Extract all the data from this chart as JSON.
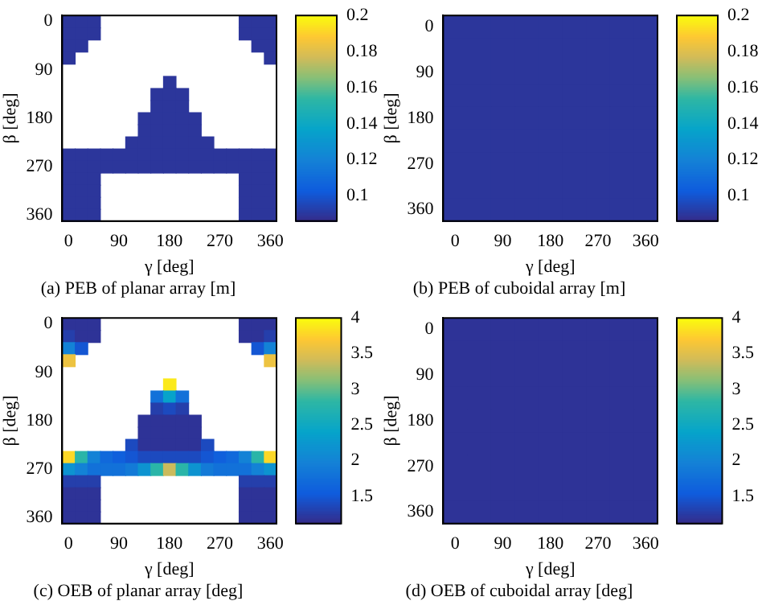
{
  "chart_data": [
    {
      "type": "heatmap",
      "title": "(a) PEB of planar array [m]",
      "xlabel": "γ [deg]",
      "ylabel": "β [deg]",
      "clim": [
        0.086,
        0.2
      ],
      "cticks": [
        0.1,
        0.12,
        0.14,
        0.16,
        0.18,
        0.2
      ],
      "categories": [
        "0",
        null,
        null,
        null,
        "90",
        null,
        null,
        null,
        "180",
        null,
        null,
        null,
        "270",
        null,
        null,
        null,
        "360"
      ],
      "y_categories": [
        "0",
        null,
        null,
        null,
        "90",
        null,
        null,
        null,
        "180",
        null,
        null,
        null,
        "270",
        null,
        null,
        null,
        "360"
      ],
      "cells": [
        [
          0.09,
          0.09,
          0.09,
          null,
          null,
          null,
          null,
          null,
          null,
          null,
          null,
          null,
          null,
          null,
          0.09,
          0.09,
          0.09
        ],
        [
          0.09,
          0.09,
          0.09,
          null,
          null,
          null,
          null,
          null,
          null,
          null,
          null,
          null,
          null,
          null,
          0.09,
          0.09,
          0.09
        ],
        [
          0.09,
          0.09,
          null,
          null,
          null,
          null,
          null,
          null,
          null,
          null,
          null,
          null,
          null,
          null,
          null,
          0.09,
          0.09
        ],
        [
          0.09,
          null,
          null,
          null,
          null,
          null,
          null,
          null,
          null,
          null,
          null,
          null,
          null,
          null,
          null,
          null,
          0.09
        ],
        [
          null,
          null,
          null,
          null,
          null,
          null,
          null,
          null,
          null,
          null,
          null,
          null,
          null,
          null,
          null,
          null,
          null
        ],
        [
          null,
          null,
          null,
          null,
          null,
          null,
          null,
          null,
          0.09,
          null,
          null,
          null,
          null,
          null,
          null,
          null,
          null
        ],
        [
          null,
          null,
          null,
          null,
          null,
          null,
          null,
          0.09,
          0.09,
          0.09,
          null,
          null,
          null,
          null,
          null,
          null,
          null
        ],
        [
          null,
          null,
          null,
          null,
          null,
          null,
          null,
          0.09,
          0.09,
          0.09,
          null,
          null,
          null,
          null,
          null,
          null,
          null
        ],
        [
          null,
          null,
          null,
          null,
          null,
          null,
          0.09,
          0.09,
          0.09,
          0.09,
          0.09,
          null,
          null,
          null,
          null,
          null,
          null
        ],
        [
          null,
          null,
          null,
          null,
          null,
          null,
          0.09,
          0.09,
          0.09,
          0.09,
          0.09,
          null,
          null,
          null,
          null,
          null,
          null
        ],
        [
          null,
          null,
          null,
          null,
          null,
          0.09,
          0.09,
          0.09,
          0.09,
          0.09,
          0.09,
          0.09,
          null,
          null,
          null,
          null,
          null
        ],
        [
          0.09,
          0.09,
          0.09,
          0.09,
          0.09,
          0.09,
          0.09,
          0.09,
          0.09,
          0.09,
          0.09,
          0.09,
          0.09,
          0.09,
          0.09,
          0.09,
          0.09
        ],
        [
          0.09,
          0.09,
          0.09,
          0.09,
          0.09,
          0.09,
          0.09,
          0.09,
          0.09,
          0.09,
          0.09,
          0.09,
          0.09,
          0.09,
          0.09,
          0.09,
          0.09
        ],
        [
          0.09,
          0.09,
          0.09,
          null,
          null,
          null,
          null,
          null,
          null,
          null,
          null,
          null,
          null,
          null,
          0.09,
          0.09,
          0.09
        ],
        [
          0.09,
          0.09,
          0.09,
          null,
          null,
          null,
          null,
          null,
          null,
          null,
          null,
          null,
          null,
          null,
          0.09,
          0.09,
          0.09
        ],
        [
          0.09,
          0.09,
          0.09,
          null,
          null,
          null,
          null,
          null,
          null,
          null,
          null,
          null,
          null,
          null,
          0.09,
          0.09,
          0.09
        ],
        [
          0.09,
          0.09,
          0.09,
          null,
          null,
          null,
          null,
          null,
          null,
          null,
          null,
          null,
          null,
          null,
          0.09,
          0.09,
          0.09
        ]
      ]
    },
    {
      "type": "heatmap",
      "title": "(b) PEB of cuboidal array [m]",
      "xlabel": "γ [deg]",
      "ylabel": "β [deg]",
      "clim": [
        0.086,
        0.2
      ],
      "cticks": [
        0.1,
        0.12,
        0.14,
        0.16,
        0.18,
        0.2
      ],
      "categories": [
        "0",
        null,
        "90",
        null,
        "180",
        null,
        "270",
        null,
        "360"
      ],
      "y_categories": [
        "0",
        null,
        "90",
        null,
        "180",
        null,
        "270",
        null,
        "360"
      ],
      "cells": [
        [
          0.09,
          0.09,
          0.09,
          0.09,
          0.09,
          0.09,
          0.09,
          0.09,
          0.09
        ],
        [
          0.09,
          0.09,
          0.09,
          0.09,
          0.09,
          0.09,
          0.09,
          0.09,
          0.09
        ],
        [
          0.09,
          0.09,
          0.09,
          0.09,
          0.09,
          0.09,
          0.09,
          0.09,
          0.09
        ],
        [
          0.09,
          0.09,
          0.09,
          0.09,
          0.09,
          0.09,
          0.09,
          0.09,
          0.09
        ],
        [
          0.09,
          0.09,
          0.09,
          0.09,
          0.09,
          0.09,
          0.09,
          0.09,
          0.09
        ],
        [
          0.09,
          0.09,
          0.09,
          0.09,
          0.09,
          0.09,
          0.09,
          0.09,
          0.09
        ],
        [
          0.09,
          0.09,
          0.09,
          0.09,
          0.09,
          0.09,
          0.09,
          0.09,
          0.09
        ],
        [
          0.09,
          0.09,
          0.09,
          0.09,
          0.09,
          0.09,
          0.09,
          0.09,
          0.09
        ],
        [
          0.09,
          0.09,
          0.09,
          0.09,
          0.09,
          0.09,
          0.09,
          0.09,
          0.09
        ]
      ]
    },
    {
      "type": "heatmap",
      "title": "(c) OEB of planar array [deg]",
      "xlabel": "γ [deg]",
      "ylabel": "β [deg]",
      "clim": [
        1.12,
        4
      ],
      "cticks": [
        1.5,
        2,
        2.5,
        3,
        3.5,
        4
      ],
      "categories": [
        "0",
        null,
        null,
        null,
        "90",
        null,
        null,
        null,
        "180",
        null,
        null,
        null,
        "270",
        null,
        null,
        null,
        "360"
      ],
      "y_categories": [
        "0",
        null,
        null,
        null,
        "90",
        null,
        null,
        null,
        "180",
        null,
        null,
        null,
        "270",
        null,
        null,
        null,
        "360"
      ],
      "cells": [
        [
          1.2,
          1.2,
          1.2,
          null,
          null,
          null,
          null,
          null,
          null,
          null,
          null,
          null,
          null,
          null,
          1.2,
          1.2,
          1.2
        ],
        [
          1.3,
          1.2,
          1.2,
          null,
          null,
          null,
          null,
          null,
          null,
          null,
          null,
          null,
          null,
          null,
          1.2,
          1.2,
          1.3
        ],
        [
          2,
          1.5,
          null,
          null,
          null,
          null,
          null,
          null,
          null,
          null,
          null,
          null,
          null,
          null,
          null,
          1.5,
          2
        ],
        [
          3.6,
          null,
          null,
          null,
          null,
          null,
          null,
          null,
          null,
          null,
          null,
          null,
          null,
          null,
          null,
          null,
          3.6
        ],
        [
          null,
          null,
          null,
          null,
          null,
          null,
          null,
          null,
          null,
          null,
          null,
          null,
          null,
          null,
          null,
          null,
          null
        ],
        [
          null,
          null,
          null,
          null,
          null,
          null,
          null,
          null,
          3.9,
          null,
          null,
          null,
          null,
          null,
          null,
          null,
          null
        ],
        [
          null,
          null,
          null,
          null,
          null,
          null,
          null,
          1.8,
          2.4,
          1.8,
          null,
          null,
          null,
          null,
          null,
          null,
          null
        ],
        [
          null,
          null,
          null,
          null,
          null,
          null,
          null,
          1.3,
          1.4,
          1.3,
          null,
          null,
          null,
          null,
          null,
          null,
          null
        ],
        [
          null,
          null,
          null,
          null,
          null,
          null,
          1.2,
          1.2,
          1.2,
          1.2,
          1.2,
          null,
          null,
          null,
          null,
          null,
          null
        ],
        [
          null,
          null,
          null,
          null,
          null,
          null,
          1.2,
          1.2,
          1.2,
          1.2,
          1.2,
          null,
          null,
          null,
          null,
          null,
          null
        ],
        [
          null,
          null,
          null,
          null,
          null,
          1.4,
          1.2,
          1.2,
          1.2,
          1.2,
          1.2,
          1.4,
          null,
          null,
          null,
          null,
          null
        ],
        [
          3.8,
          2.8,
          2,
          1.7,
          1.6,
          1.5,
          1.4,
          1.4,
          1.4,
          1.4,
          1.4,
          1.5,
          1.6,
          1.7,
          2,
          2.8,
          3.8
        ],
        [
          2.2,
          2,
          1.8,
          1.8,
          1.8,
          1.9,
          2.2,
          2.8,
          3.4,
          2.8,
          2.2,
          1.9,
          1.8,
          1.8,
          1.8,
          2,
          2.2
        ],
        [
          1.3,
          1.3,
          1.3,
          null,
          null,
          null,
          null,
          null,
          null,
          null,
          null,
          null,
          null,
          null,
          1.3,
          1.3,
          1.3
        ],
        [
          1.2,
          1.2,
          1.2,
          null,
          null,
          null,
          null,
          null,
          null,
          null,
          null,
          null,
          null,
          null,
          1.2,
          1.2,
          1.2
        ],
        [
          1.2,
          1.2,
          1.2,
          null,
          null,
          null,
          null,
          null,
          null,
          null,
          null,
          null,
          null,
          null,
          1.2,
          1.2,
          1.2
        ],
        [
          1.2,
          1.2,
          1.2,
          null,
          null,
          null,
          null,
          null,
          null,
          null,
          null,
          null,
          null,
          null,
          1.2,
          1.2,
          1.2
        ]
      ]
    },
    {
      "type": "heatmap",
      "title": "(d) OEB of cuboidal array [deg]",
      "xlabel": "γ [deg]",
      "ylabel": "β [deg]",
      "clim": [
        1.12,
        4
      ],
      "cticks": [
        1.5,
        2,
        2.5,
        3,
        3.5,
        4
      ],
      "categories": [
        "0",
        null,
        "90",
        null,
        "180",
        null,
        "270",
        null,
        "360"
      ],
      "y_categories": [
        "0",
        null,
        "90",
        null,
        "180",
        null,
        "270",
        null,
        "360"
      ],
      "cells": [
        [
          1.2,
          1.2,
          1.2,
          1.2,
          1.2,
          1.2,
          1.2,
          1.2,
          1.2
        ],
        [
          1.2,
          1.2,
          1.2,
          1.2,
          1.2,
          1.2,
          1.2,
          1.2,
          1.2
        ],
        [
          1.2,
          1.2,
          1.2,
          1.2,
          1.2,
          1.2,
          1.2,
          1.2,
          1.2
        ],
        [
          1.2,
          1.2,
          1.2,
          1.2,
          1.2,
          1.2,
          1.2,
          1.2,
          1.2
        ],
        [
          1.2,
          1.2,
          1.2,
          1.2,
          1.2,
          1.2,
          1.2,
          1.2,
          1.2
        ],
        [
          1.2,
          1.2,
          1.2,
          1.2,
          1.2,
          1.2,
          1.2,
          1.2,
          1.2
        ],
        [
          1.2,
          1.2,
          1.2,
          1.2,
          1.2,
          1.2,
          1.2,
          1.2,
          1.2
        ],
        [
          1.2,
          1.2,
          1.2,
          1.2,
          1.2,
          1.2,
          1.2,
          1.2,
          1.2
        ],
        [
          1.2,
          1.2,
          1.2,
          1.2,
          1.2,
          1.2,
          1.2,
          1.2,
          1.2
        ]
      ]
    }
  ]
}
